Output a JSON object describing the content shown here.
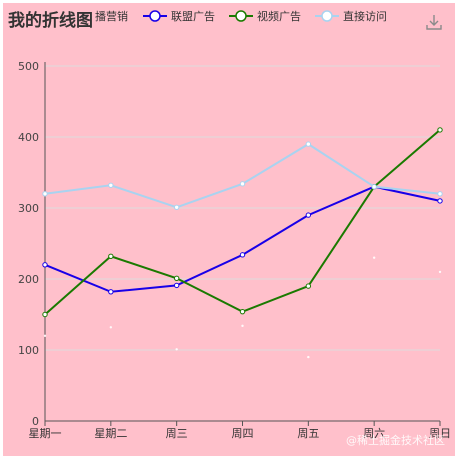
{
  "chart_data": {
    "type": "line",
    "title": "我的折线图",
    "categories": [
      "星期一",
      "星期二",
      "周三",
      "周四",
      "周五",
      "周六",
      "周日"
    ],
    "series": [
      {
        "name": "播营销",
        "values": [
          120,
          132,
          101,
          134,
          90,
          230,
          210
        ],
        "color": "#ffffff",
        "line": false,
        "markers": false,
        "legend_label": "播营销"
      },
      {
        "name": "联盟广告",
        "values": [
          220,
          182,
          191,
          234,
          290,
          330,
          310
        ],
        "color": "#1800e8"
      },
      {
        "name": "视频广告",
        "values": [
          150,
          232,
          201,
          154,
          190,
          330,
          410
        ],
        "color": "#1a7a00"
      },
      {
        "name": "直接访问",
        "values": [
          320,
          332,
          301,
          334,
          390,
          330,
          320
        ],
        "color": "#a9d3f0"
      }
    ],
    "ylim": [
      0,
      500
    ],
    "yticks": [
      0,
      100,
      200,
      300,
      400,
      500
    ],
    "grid": true,
    "legend": "top"
  },
  "toolbar": {
    "download_icon": "download-icon"
  },
  "watermark": "@稀土掘金技术社区"
}
